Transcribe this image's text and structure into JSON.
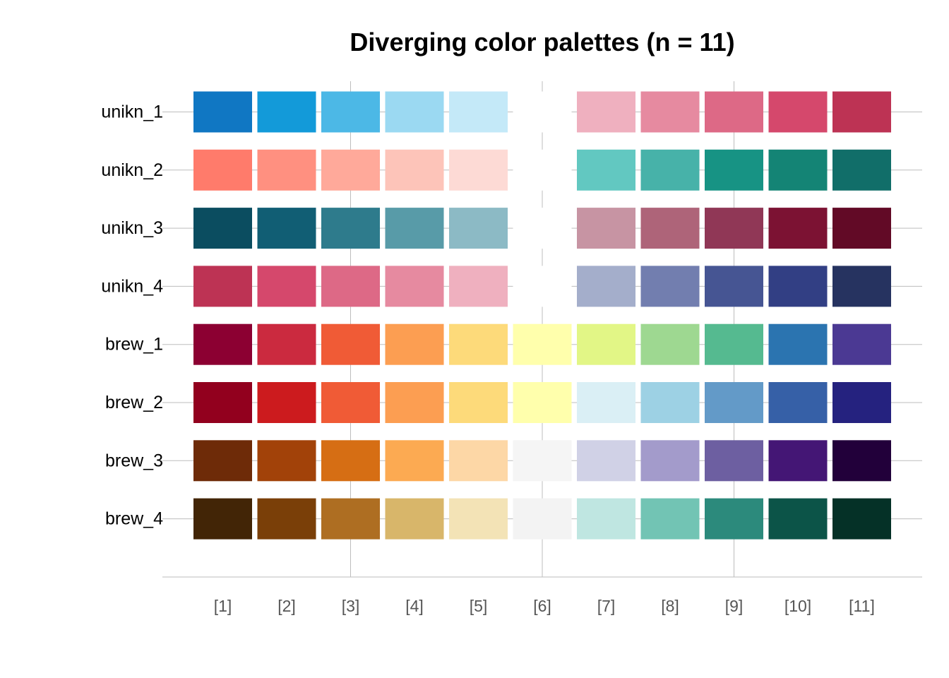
{
  "chart_data": {
    "type": "heatmap",
    "title": "Diverging color palettes (n = 11)",
    "x_tick_labels": [
      "[1]",
      "[2]",
      "[3]",
      "[4]",
      "[5]",
      "[6]",
      "[7]",
      "[8]",
      "[9]",
      "[10]",
      "[11]"
    ],
    "grid": true,
    "palettes": [
      {
        "name": "unikn_1",
        "colors": [
          "#1077C3",
          "#139AD9",
          "#4CB8E6",
          "#9BD9F2",
          "#C4E9F8",
          "#FFFFFF",
          "#EFB0BF",
          "#E68AA0",
          "#DD6986",
          "#D5486C",
          "#BD3354"
        ]
      },
      {
        "name": "unikn_2",
        "colors": [
          "#FF7B6B",
          "#FF9080",
          "#FFA99A",
          "#FDC4B9",
          "#FDDAD5",
          "#FFFFFF",
          "#62C8C1",
          "#47B2A9",
          "#179384",
          "#148475",
          "#116E69"
        ]
      },
      {
        "name": "unikn_3",
        "colors": [
          "#0B4D60",
          "#115E74",
          "#2E7B8C",
          "#589BA8",
          "#8CBAC5",
          "#FFFFFF",
          "#C794A3",
          "#AE6479",
          "#903756",
          "#7C1233",
          "#620A26"
        ]
      },
      {
        "name": "unikn_4",
        "colors": [
          "#BD3354",
          "#D5486C",
          "#DD6986",
          "#E68AA0",
          "#EFB0BF",
          "#FFFFFF",
          "#A4AECB",
          "#727EAF",
          "#465593",
          "#323F84",
          "#263360"
        ]
      },
      {
        "name": "brew_1",
        "colors": [
          "#8C0032",
          "#CB2A3F",
          "#F05B36",
          "#FC9E52",
          "#FDDA7A",
          "#FFFFAC",
          "#E2F686",
          "#9ED891",
          "#55BA90",
          "#2B74B0",
          "#4B3993"
        ]
      },
      {
        "name": "brew_2",
        "colors": [
          "#92001E",
          "#CC1B1E",
          "#F05B36",
          "#FC9E52",
          "#FDDA7A",
          "#FFFFAC",
          "#DAEFF5",
          "#9DD1E4",
          "#639AC8",
          "#3660A7",
          "#25227F"
        ]
      },
      {
        "name": "brew_3",
        "colors": [
          "#6E2B08",
          "#A24209",
          "#D66E14",
          "#FCAA52",
          "#FDD7A6",
          "#F5F5F5",
          "#D0D1E6",
          "#A39BCB",
          "#6D5FA1",
          "#441675",
          "#22003A"
        ]
      },
      {
        "name": "brew_4",
        "colors": [
          "#422506",
          "#7A3F08",
          "#AE6E22",
          "#D8B66A",
          "#F3E3B6",
          "#F3F3F3",
          "#BFE6E1",
          "#72C4B4",
          "#2C8A7C",
          "#0C5448",
          "#053127"
        ]
      }
    ]
  }
}
